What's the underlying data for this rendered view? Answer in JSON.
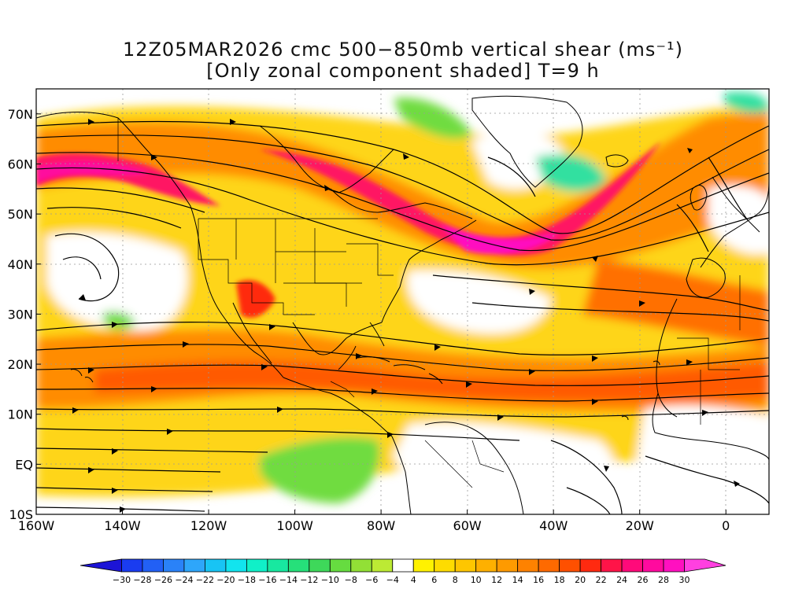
{
  "title": {
    "line1": "12Z05MAR2026 cmc 500−850mb vertical shear (ms⁻¹)",
    "line2": "[Only zonal component shaded] T=9 h"
  },
  "map": {
    "lon_range": [
      -160,
      10
    ],
    "lat_range": [
      -10,
      75
    ],
    "lat_ticks": [
      {
        "value": 70,
        "label": "70N"
      },
      {
        "value": 60,
        "label": "60N"
      },
      {
        "value": 50,
        "label": "50N"
      },
      {
        "value": 40,
        "label": "40N"
      },
      {
        "value": 30,
        "label": "30N"
      },
      {
        "value": 20,
        "label": "20N"
      },
      {
        "value": 10,
        "label": "10N"
      },
      {
        "value": 0,
        "label": "EQ"
      },
      {
        "value": -10,
        "label": "10S"
      }
    ],
    "lon_ticks": [
      {
        "value": -160,
        "label": "160W"
      },
      {
        "value": -140,
        "label": "140W"
      },
      {
        "value": -120,
        "label": "120W"
      },
      {
        "value": -100,
        "label": "100W"
      },
      {
        "value": -80,
        "label": "80W"
      },
      {
        "value": -60,
        "label": "60W"
      },
      {
        "value": -40,
        "label": "40W"
      },
      {
        "value": -20,
        "label": "20W"
      },
      {
        "value": 0,
        "label": "0"
      }
    ]
  },
  "colorbar": {
    "labels": [
      "−30",
      "−28",
      "−26",
      "−24",
      "−22",
      "−20",
      "−18",
      "−16",
      "−14",
      "−12",
      "−10",
      "−8",
      "−6",
      "−4",
      "4",
      "6",
      "8",
      "10",
      "12",
      "14",
      "16",
      "18",
      "20",
      "22",
      "24",
      "26",
      "28",
      "30"
    ],
    "colors": [
      "#1c14d6",
      "#1a3cf0",
      "#2260f5",
      "#2a82f8",
      "#2ea6fa",
      "#18c4f4",
      "#12e4ee",
      "#10f0c8",
      "#18e8a0",
      "#26e07a",
      "#3ed85a",
      "#66dc40",
      "#92e036",
      "#bcea34",
      "#ffffff",
      "#fff200",
      "#fedc00",
      "#fec600",
      "#feb000",
      "#fe9a00",
      "#fe8200",
      "#fe6a00",
      "#fe5000",
      "#ff2a10",
      "#ff1448",
      "#ff0a7a",
      "#ff0a9e",
      "#ff10c0",
      "#ff40e0"
    ]
  },
  "colors": {
    "background": "#ffffff",
    "shear_strong": "#ff1464",
    "shear_mod": "#ff7a00",
    "shear_light": "#ffd700",
    "shear_neg": "#3ed85a"
  }
}
